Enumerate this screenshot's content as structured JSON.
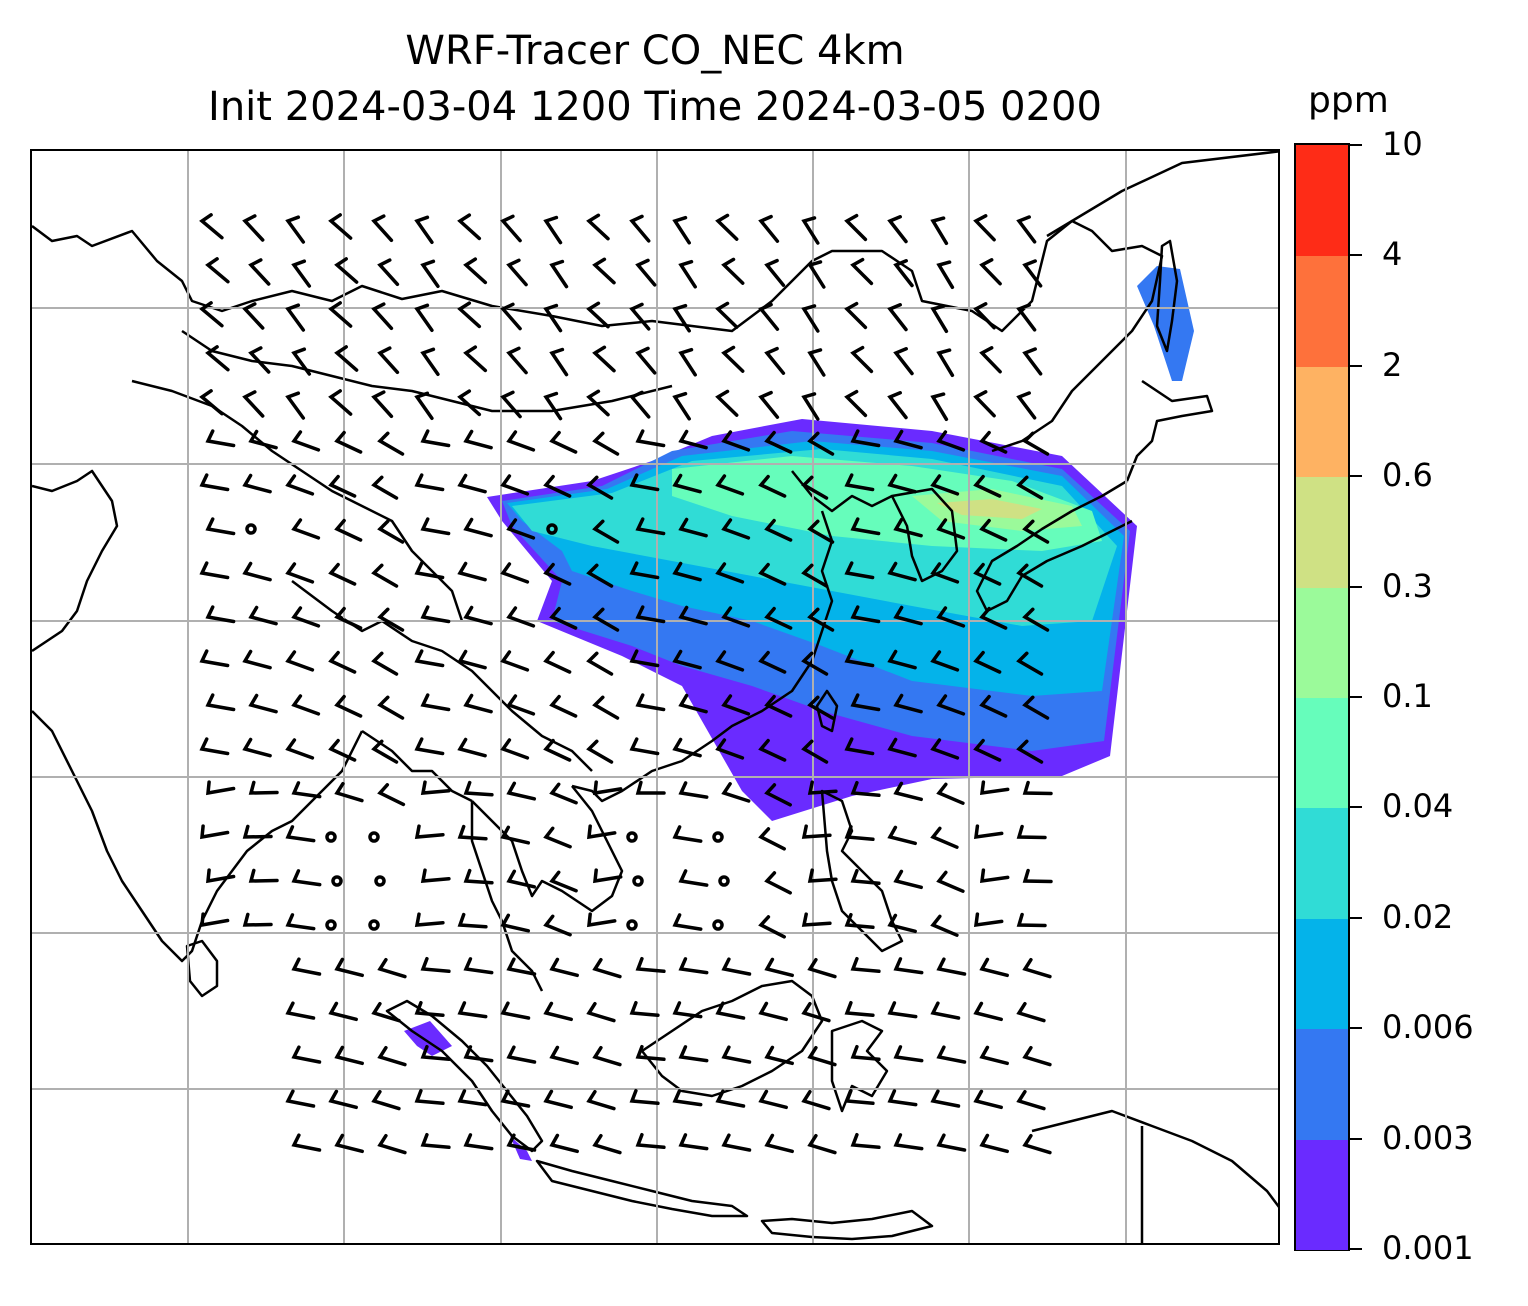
{
  "title": {
    "line1": "WRF-Tracer CO_NEC 4km",
    "line2": "Init 2024-03-04 1200 Time 2024-03-05 0200"
  },
  "colorbar": {
    "unit": "ppm",
    "levels": [
      "0.001",
      "0.003",
      "0.006",
      "0.02",
      "0.04",
      "0.1",
      "0.3",
      "0.6",
      "2",
      "4",
      "10"
    ],
    "colors": [
      "#6a2bff",
      "#3478f2",
      "#04b3ea",
      "#30dcd6",
      "#66fdbb",
      "#9bfa9a",
      "#cfe184",
      "#feb262",
      "#fe713b",
      "#fe2c17"
    ]
  },
  "map": {
    "gridlines": true,
    "coastline_color": "#000000",
    "wind_barbs": true
  }
}
